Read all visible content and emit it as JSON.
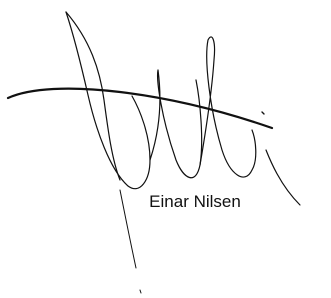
{
  "signature": {
    "name": "Einar Nilsen"
  }
}
